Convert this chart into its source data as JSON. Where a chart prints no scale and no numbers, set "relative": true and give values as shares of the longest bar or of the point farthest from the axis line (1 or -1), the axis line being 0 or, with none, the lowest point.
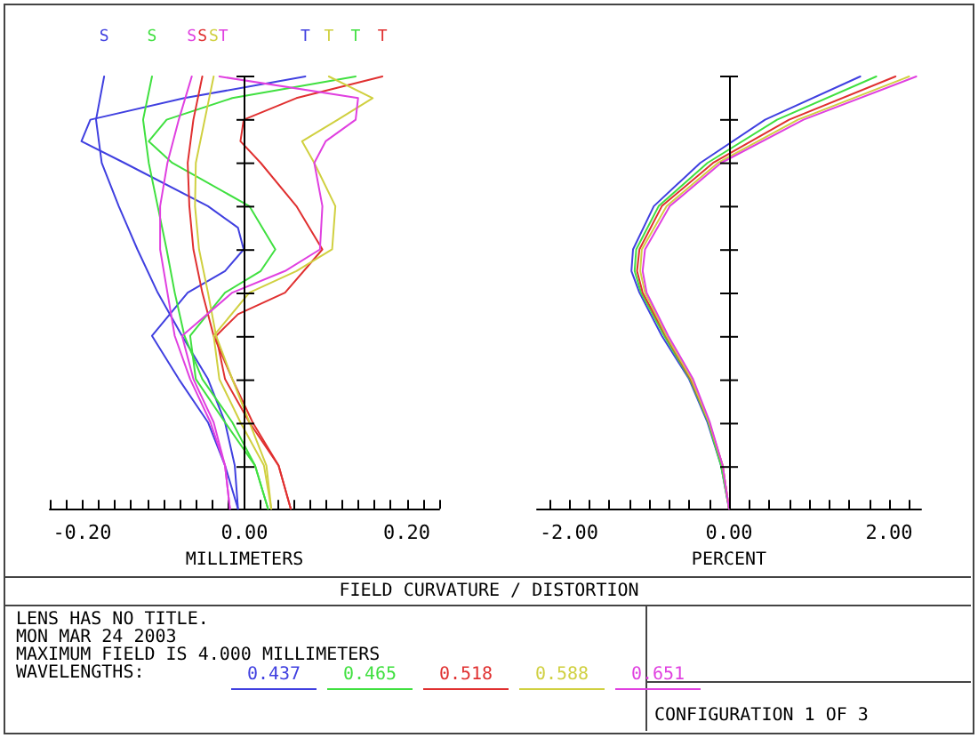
{
  "chart_data": [
    {
      "type": "line",
      "relative": true,
      "title": "FIELD CURVATURE / DISTORTION",
      "xlabel": "MILLIMETERS",
      "annotations": [
        "LENS HAS NO TITLE.",
        "MON MAR 24 2003",
        "MAXIMUM FIELD IS 4.000 MILLIMETERS",
        "WAVELENGTHS:",
        "CONFIGURATION 1 OF 3"
      ],
      "xlim": [
        -0.24,
        0.24
      ],
      "xticks": [
        {
          "value": -0.2,
          "label": "-0.20"
        },
        {
          "value": 0,
          "label": "0.00"
        },
        {
          "value": 0.2,
          "label": "0.20"
        }
      ],
      "tick_labels": "x",
      "marker": "none",
      "ref_lines": [
        {
          "axis": "x",
          "value": 0,
          "color": "#000000"
        }
      ],
      "series": [
        {
          "name": "S",
          "color": "#4040e0",
          "x": [
            -0.008,
            -0.012,
            -0.024,
            -0.045,
            -0.077,
            -0.107,
            -0.132,
            -0.155,
            -0.176,
            -0.183,
            -0.173
          ],
          "values": [
            0,
            0.1,
            0.2,
            0.3,
            0.4,
            0.5,
            0.6,
            0.7,
            0.8,
            0.9,
            1
          ]
        },
        {
          "name": "T",
          "color": "#4040e0",
          "x": [
            -0.008,
            -0.024,
            -0.045,
            -0.081,
            -0.114,
            -0.07,
            -0.024,
            -0.001,
            -0.008,
            -0.045,
            -0.148,
            -0.201,
            -0.19,
            -0.074,
            0.075
          ],
          "values": [
            0,
            0.1,
            0.2,
            0.3,
            0.4,
            0.5,
            0.55,
            0.6,
            0.65,
            0.7,
            0.8,
            0.85,
            0.9,
            0.95,
            1
          ]
        },
        {
          "name": "S",
          "color": "#40e040",
          "x": [
            0.029,
            0.013,
            -0.015,
            -0.052,
            -0.074,
            -0.086,
            -0.096,
            -0.107,
            -0.118,
            -0.125,
            -0.114
          ],
          "values": [
            0,
            0.1,
            0.2,
            0.3,
            0.4,
            0.5,
            0.6,
            0.7,
            0.8,
            0.9,
            1
          ]
        },
        {
          "name": "T",
          "color": "#40e040",
          "x": [
            0.029,
            0.013,
            -0.024,
            -0.06,
            -0.067,
            -0.024,
            0.02,
            0.038,
            0.006,
            -0.089,
            -0.118,
            -0.096,
            -0.015,
            0.137
          ],
          "values": [
            0,
            0.1,
            0.2,
            0.3,
            0.4,
            0.5,
            0.55,
            0.6,
            0.7,
            0.8,
            0.85,
            0.9,
            0.95,
            1
          ]
        },
        {
          "name": "S",
          "color": "#e03030",
          "x": [
            0.057,
            0.042,
            0.01,
            -0.015,
            -0.038,
            -0.052,
            -0.063,
            -0.068,
            -0.07,
            -0.063,
            -0.052
          ],
          "values": [
            0,
            0.1,
            0.2,
            0.3,
            0.4,
            0.5,
            0.6,
            0.7,
            0.8,
            0.9,
            1
          ]
        },
        {
          "name": "T",
          "color": "#e03030",
          "x": [
            0.057,
            0.042,
            0.006,
            -0.024,
            -0.035,
            -0.008,
            0.05,
            0.096,
            0.064,
            0.02,
            -0.005,
            -0.001,
            0.064,
            0.17
          ],
          "values": [
            0,
            0.1,
            0.2,
            0.3,
            0.4,
            0.45,
            0.5,
            0.6,
            0.7,
            0.8,
            0.85,
            0.9,
            0.95,
            1
          ]
        },
        {
          "name": "S",
          "color": "#d0d040",
          "x": [
            0.033,
            0.027,
            0.006,
            -0.015,
            -0.035,
            -0.045,
            -0.056,
            -0.061,
            -0.06,
            -0.049,
            -0.038
          ],
          "values": [
            0,
            0.1,
            0.2,
            0.3,
            0.4,
            0.5,
            0.6,
            0.7,
            0.8,
            0.9,
            1
          ]
        },
        {
          "name": "T",
          "color": "#d0d040",
          "x": [
            0.033,
            0.024,
            -0.005,
            -0.031,
            -0.038,
            0.006,
            0.064,
            0.108,
            0.112,
            0.086,
            0.071,
            0.115,
            0.158,
            0.104
          ],
          "values": [
            0,
            0.1,
            0.2,
            0.3,
            0.4,
            0.5,
            0.55,
            0.6,
            0.7,
            0.8,
            0.85,
            0.9,
            0.95,
            1
          ]
        },
        {
          "name": "S",
          "color": "#e040e0",
          "x": [
            -0.018,
            -0.024,
            -0.042,
            -0.067,
            -0.086,
            -0.095,
            -0.104,
            -0.104,
            -0.095,
            -0.081,
            -0.065
          ],
          "values": [
            0,
            0.1,
            0.2,
            0.3,
            0.4,
            0.5,
            0.6,
            0.7,
            0.8,
            0.9,
            1
          ]
        },
        {
          "name": "T",
          "color": "#e040e0",
          "x": [
            -0.018,
            -0.024,
            -0.038,
            -0.063,
            -0.077,
            -0.015,
            0.05,
            0.093,
            0.096,
            0.086,
            0.1,
            0.137,
            0.14,
            -0.031
          ],
          "values": [
            0,
            0.1,
            0.2,
            0.3,
            0.4,
            0.5,
            0.55,
            0.6,
            0.7,
            0.8,
            0.85,
            0.9,
            0.95,
            1
          ]
        }
      ]
    },
    {
      "type": "line",
      "relative": true,
      "xlabel": "PERCENT",
      "legend": "bottom",
      "xlim": [
        -2.4,
        2.4
      ],
      "xticks": [
        {
          "value": -2,
          "label": "-2.00"
        },
        {
          "value": 0,
          "label": "0.00"
        },
        {
          "value": 2,
          "label": "2.00"
        }
      ],
      "tick_labels": "x",
      "marker": "none",
      "ref_lines": [
        {
          "axis": "x",
          "value": 0,
          "color": "#000000"
        }
      ],
      "series": [
        {
          "name": "0.437",
          "color": "#4040e0",
          "x": [
            0,
            -0.1,
            -0.27,
            -0.5,
            -0.84,
            -1.12,
            -1.22,
            -1.2,
            -0.94,
            -0.36,
            0.45,
            1.64
          ],
          "values": [
            0,
            0.1,
            0.2,
            0.3,
            0.4,
            0.5,
            0.55,
            0.6,
            0.7,
            0.8,
            0.9,
            1
          ]
        },
        {
          "name": "0.465",
          "color": "#40e040",
          "x": [
            0,
            -0.1,
            -0.26,
            -0.49,
            -0.81,
            -1.1,
            -1.18,
            -1.16,
            -0.88,
            -0.27,
            0.6,
            1.84
          ],
          "values": [
            0,
            0.1,
            0.2,
            0.3,
            0.4,
            0.5,
            0.55,
            0.6,
            0.7,
            0.8,
            0.9,
            1
          ]
        },
        {
          "name": "0.518",
          "color": "#e03030",
          "x": [
            0,
            -0.08,
            -0.25,
            -0.48,
            -0.79,
            -1.08,
            -1.15,
            -1.12,
            -0.84,
            -0.2,
            0.75,
            2.08
          ],
          "values": [
            0,
            0.1,
            0.2,
            0.3,
            0.4,
            0.5,
            0.55,
            0.6,
            0.7,
            0.8,
            0.9,
            1
          ]
        },
        {
          "name": "0.588",
          "color": "#d0d040",
          "x": [
            0,
            -0.08,
            -0.25,
            -0.47,
            -0.78,
            -1.05,
            -1.11,
            -1.09,
            -0.78,
            -0.14,
            0.86,
            2.25
          ],
          "values": [
            0,
            0.1,
            0.2,
            0.3,
            0.4,
            0.5,
            0.55,
            0.6,
            0.7,
            0.8,
            0.9,
            1
          ]
        },
        {
          "name": "0.651",
          "color": "#e040e0",
          "x": [
            0,
            -0.08,
            -0.24,
            -0.45,
            -0.76,
            -1.03,
            -1.08,
            -1.05,
            -0.74,
            -0.1,
            0.93,
            2.34
          ],
          "values": [
            0,
            0.1,
            0.2,
            0.3,
            0.4,
            0.5,
            0.55,
            0.6,
            0.7,
            0.8,
            0.9,
            1
          ]
        }
      ]
    }
  ]
}
